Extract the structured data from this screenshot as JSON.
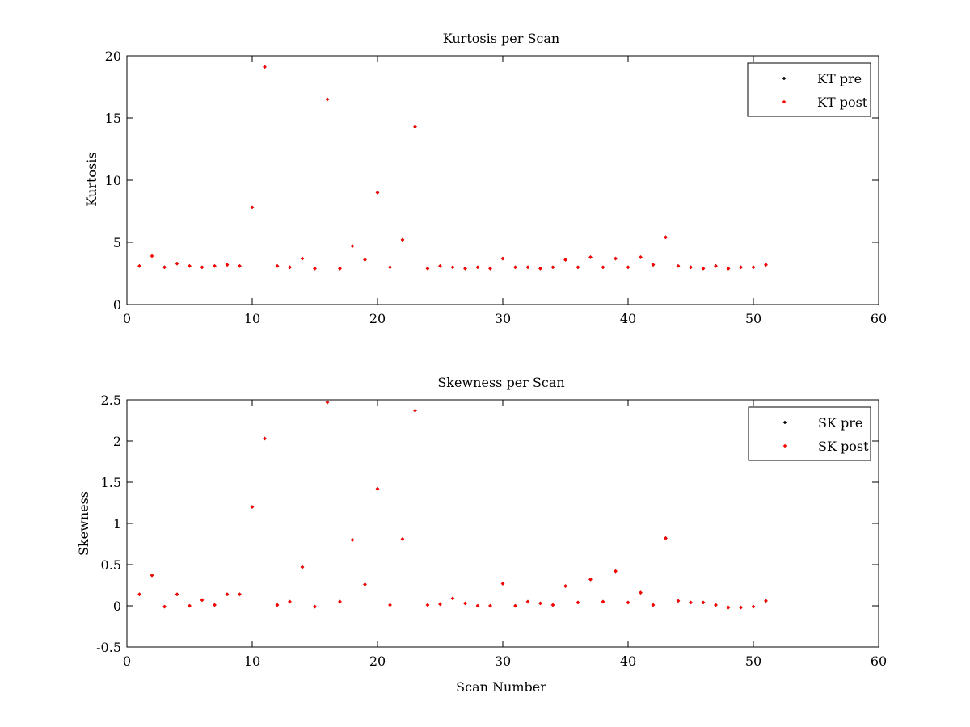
{
  "colors": {
    "pre": "#000000",
    "post": "#ff0000",
    "axes": "#000000",
    "background": "#ffffff"
  },
  "chart_data": [
    {
      "type": "scatter",
      "title": "Kurtosis per Scan",
      "xlabel": "",
      "ylabel": "Kurtosis",
      "xlim": [
        0,
        60
      ],
      "ylim": [
        0,
        20
      ],
      "xticks": [
        "0",
        "10",
        "20",
        "30",
        "40",
        "50",
        "60"
      ],
      "yticks": [
        "0",
        "5",
        "10",
        "15",
        "20"
      ],
      "legend_position": "top-right",
      "grid": false,
      "series": [
        {
          "name": "KT pre",
          "color": "#000000",
          "x": [
            1,
            2,
            3,
            4,
            5,
            6,
            7,
            8,
            9,
            10,
            11,
            12,
            13,
            14,
            15,
            16,
            17,
            18,
            19,
            20,
            21,
            22,
            23,
            24,
            25,
            26,
            27,
            28,
            29,
            30,
            31,
            32,
            33,
            34,
            35,
            36,
            37,
            38,
            39,
            40,
            41,
            42,
            43,
            44,
            45,
            46,
            47,
            48,
            49,
            50,
            51
          ],
          "y": [
            3.1,
            3.9,
            3.0,
            3.3,
            3.1,
            3.0,
            3.1,
            3.2,
            3.1,
            7.8,
            19.1,
            3.1,
            3.0,
            3.7,
            2.9,
            16.5,
            2.9,
            4.7,
            3.6,
            9.0,
            3.0,
            5.2,
            14.3,
            2.9,
            3.1,
            3.0,
            2.9,
            3.0,
            2.9,
            3.7,
            3.0,
            3.0,
            2.9,
            3.0,
            3.6,
            3.0,
            3.8,
            3.0,
            3.7,
            3.0,
            3.8,
            3.2,
            5.4,
            3.1,
            3.0,
            2.9,
            3.1,
            2.9,
            3.0,
            3.0,
            3.2
          ]
        },
        {
          "name": "KT post",
          "color": "#ff0000",
          "x": [
            1,
            2,
            3,
            4,
            5,
            6,
            7,
            8,
            9,
            10,
            11,
            12,
            13,
            14,
            15,
            16,
            17,
            18,
            19,
            20,
            21,
            22,
            23,
            24,
            25,
            26,
            27,
            28,
            29,
            30,
            31,
            32,
            33,
            34,
            35,
            36,
            37,
            38,
            39,
            40,
            41,
            42,
            43,
            44,
            45,
            46,
            47,
            48,
            49,
            50,
            51
          ],
          "y": [
            3.1,
            3.9,
            3.0,
            3.3,
            3.1,
            3.0,
            3.1,
            3.2,
            3.1,
            7.8,
            19.1,
            3.1,
            3.0,
            3.7,
            2.9,
            16.5,
            2.9,
            4.7,
            3.6,
            9.0,
            3.0,
            5.2,
            14.3,
            2.9,
            3.1,
            3.0,
            2.9,
            3.0,
            2.9,
            3.7,
            3.0,
            3.0,
            2.9,
            3.0,
            3.6,
            3.0,
            3.8,
            3.0,
            3.7,
            3.0,
            3.8,
            3.2,
            5.4,
            3.1,
            3.0,
            2.9,
            3.1,
            2.9,
            3.0,
            3.0,
            3.2
          ]
        }
      ]
    },
    {
      "type": "scatter",
      "title": "Skewness per Scan",
      "xlabel": "Scan Number",
      "ylabel": "Skewness",
      "xlim": [
        0,
        60
      ],
      "ylim": [
        -0.5,
        2.5
      ],
      "xticks": [
        "0",
        "10",
        "20",
        "30",
        "40",
        "50",
        "60"
      ],
      "yticks": [
        "-0.5",
        "0",
        "0.5",
        "1",
        "1.5",
        "2",
        "2.5"
      ],
      "legend_position": "top-right",
      "grid": false,
      "series": [
        {
          "name": "SK pre",
          "color": "#000000",
          "x": [
            1,
            2,
            3,
            4,
            5,
            6,
            7,
            8,
            9,
            10,
            11,
            12,
            13,
            14,
            15,
            16,
            17,
            18,
            19,
            20,
            21,
            22,
            23,
            24,
            25,
            26,
            27,
            28,
            29,
            30,
            31,
            32,
            33,
            34,
            35,
            36,
            37,
            38,
            39,
            40,
            41,
            42,
            43,
            44,
            45,
            46,
            47,
            48,
            49,
            50,
            51
          ],
          "y": [
            0.14,
            0.37,
            -0.01,
            0.14,
            0.0,
            0.07,
            0.01,
            0.14,
            0.14,
            1.2,
            2.03,
            0.01,
            0.05,
            0.47,
            -0.01,
            2.47,
            0.05,
            0.8,
            0.26,
            1.42,
            0.01,
            0.81,
            2.37,
            0.01,
            0.02,
            0.09,
            0.03,
            0.0,
            0.0,
            0.27,
            0.0,
            0.05,
            0.03,
            0.01,
            0.24,
            0.04,
            0.32,
            0.05,
            0.42,
            0.04,
            0.16,
            0.01,
            0.82,
            0.06,
            0.04,
            0.04,
            0.01,
            -0.02,
            -0.02,
            -0.01,
            0.06
          ]
        },
        {
          "name": "SK post",
          "color": "#ff0000",
          "x": [
            1,
            2,
            3,
            4,
            5,
            6,
            7,
            8,
            9,
            10,
            11,
            12,
            13,
            14,
            15,
            16,
            17,
            18,
            19,
            20,
            21,
            22,
            23,
            24,
            25,
            26,
            27,
            28,
            29,
            30,
            31,
            32,
            33,
            34,
            35,
            36,
            37,
            38,
            39,
            40,
            41,
            42,
            43,
            44,
            45,
            46,
            47,
            48,
            49,
            50,
            51
          ],
          "y": [
            0.14,
            0.37,
            -0.01,
            0.14,
            0.0,
            0.07,
            0.01,
            0.14,
            0.14,
            1.2,
            2.03,
            0.01,
            0.05,
            0.47,
            -0.01,
            2.47,
            0.05,
            0.8,
            0.26,
            1.42,
            0.01,
            0.81,
            2.37,
            0.01,
            0.02,
            0.09,
            0.03,
            0.0,
            0.0,
            0.27,
            0.0,
            0.05,
            0.03,
            0.01,
            0.24,
            0.04,
            0.32,
            0.05,
            0.42,
            0.04,
            0.16,
            0.01,
            0.82,
            0.06,
            0.04,
            0.04,
            0.01,
            -0.02,
            -0.02,
            -0.01,
            0.06
          ]
        }
      ]
    }
  ]
}
